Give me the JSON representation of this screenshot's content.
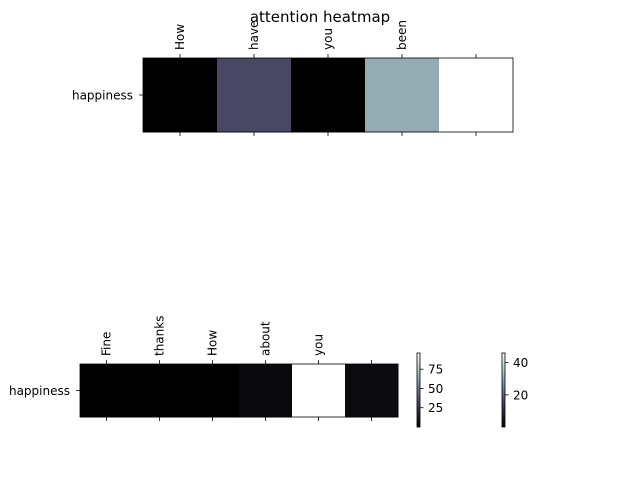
{
  "chart_data": {
    "type": "heatmap",
    "title": "attention heatmap",
    "colormap": "bone",
    "grid": false,
    "panels": [
      {
        "row_labels": [
          "happiness"
        ],
        "col_labels": [
          "How",
          "have",
          "you",
          "been",
          ""
        ],
        "values": [
          [
            0,
            15,
            0,
            30,
            45
          ]
        ],
        "colorbar_ticks": [
          20,
          40
        ],
        "colorbar_range": [
          0,
          46
        ]
      },
      {
        "row_labels": [
          "happiness"
        ],
        "col_labels": [
          "Fine",
          "thanks",
          "How",
          "about",
          "you",
          ""
        ],
        "values": [
          [
            0,
            0,
            0,
            4,
            95,
            5
          ]
        ],
        "colorbar_ticks": [
          25,
          50,
          75
        ],
        "colorbar_range": [
          0,
          96
        ]
      }
    ]
  }
}
